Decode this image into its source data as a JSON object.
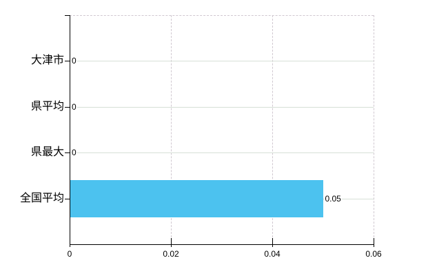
{
  "chart_data": {
    "type": "bar",
    "orientation": "horizontal",
    "title": "",
    "xlabel": "",
    "ylabel": "",
    "categories": [
      "大津市",
      "県平均",
      "県最大",
      "全国平均"
    ],
    "values": [
      0,
      0,
      0,
      0.05
    ],
    "value_labels": [
      "0",
      "0",
      "0",
      "0.05"
    ],
    "xlim": [
      0,
      0.06
    ],
    "xticks": [
      0,
      0.02,
      0.04,
      0.06
    ],
    "xtick_labels": [
      "0",
      "0.02",
      "0.04",
      "0.06"
    ],
    "grid": true,
    "legend_position": "none",
    "colors": {
      "bar": "#4CC2EF",
      "axis": "#000000",
      "h_gridline": "#D6DFD6",
      "v_gridline": "#D0C8D0",
      "text": "#000000",
      "background": "#FFFFFF"
    }
  }
}
